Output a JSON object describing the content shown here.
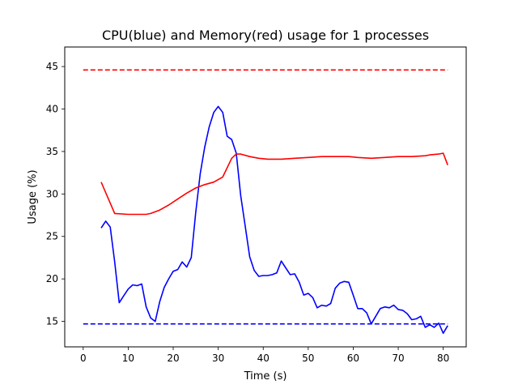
{
  "chart_data": {
    "type": "line",
    "title": "CPU(blue) and Memory(red) usage for 1 processes",
    "xlabel": "Time (s)",
    "ylabel": "Usage (%)",
    "xlim": [
      -4.1,
      85.1
    ],
    "ylim": [
      12.0,
      47.3
    ],
    "x_ticks": [
      0,
      10,
      20,
      30,
      40,
      50,
      60,
      70,
      80
    ],
    "y_ticks": [
      15,
      20,
      25,
      30,
      35,
      40,
      45
    ],
    "grid": false,
    "series": [
      {
        "color": "#0000ff",
        "style": "solid",
        "x": [
          4,
          5,
          6,
          7,
          8,
          9,
          10,
          11,
          12,
          13,
          14,
          15,
          16,
          17,
          18,
          19,
          20,
          21,
          22,
          23,
          24,
          25,
          26,
          27,
          28,
          29,
          30,
          31,
          32,
          33,
          34,
          35,
          36,
          37,
          38,
          39,
          40,
          41,
          42,
          43,
          44,
          45,
          46,
          47,
          48,
          49,
          50,
          51,
          52,
          53,
          54,
          55,
          56,
          57,
          58,
          59,
          60,
          61,
          62,
          63,
          64,
          65,
          66,
          67,
          68,
          69,
          70,
          71,
          72,
          73,
          74,
          75,
          76,
          77,
          78,
          79,
          80,
          81
        ],
        "y": [
          26.0,
          26.8,
          26.1,
          22.0,
          17.2,
          18.0,
          18.8,
          19.3,
          19.2,
          19.4,
          16.7,
          15.4,
          15.0,
          17.3,
          19.0,
          20.0,
          20.9,
          21.1,
          22.0,
          21.4,
          22.5,
          27.8,
          32.4,
          35.5,
          37.9,
          39.6,
          40.3,
          39.6,
          36.8,
          36.4,
          34.8,
          29.8,
          26.2,
          22.6,
          21.0,
          20.3,
          20.4,
          20.4,
          20.5,
          20.7,
          22.1,
          21.3,
          20.5,
          20.6,
          19.6,
          18.1,
          18.3,
          17.8,
          16.6,
          16.9,
          16.8,
          17.1,
          18.9,
          19.5,
          19.7,
          19.6,
          18.1,
          16.5,
          16.5,
          16.0,
          14.7,
          15.6,
          16.5,
          16.7,
          16.6,
          16.9,
          16.4,
          16.3,
          15.9,
          15.2,
          15.3,
          15.6,
          14.3,
          14.6,
          14.3,
          14.8,
          13.6,
          14.5
        ]
      },
      {
        "color": "#ff0000",
        "style": "solid",
        "x": [
          4,
          7,
          10,
          13,
          14,
          15,
          17,
          19,
          21,
          23,
          25,
          27,
          29,
          31,
          33,
          34,
          35,
          37,
          39,
          41,
          44,
          47,
          50,
          53,
          56,
          59,
          61,
          64,
          67,
          70,
          73,
          76,
          77,
          79,
          80,
          81
        ],
        "y": [
          31.4,
          27.7,
          27.6,
          27.6,
          27.6,
          27.7,
          28.1,
          28.7,
          29.4,
          30.1,
          30.7,
          31.1,
          31.4,
          32.0,
          34.2,
          34.7,
          34.7,
          34.4,
          34.2,
          34.1,
          34.1,
          34.2,
          34.3,
          34.4,
          34.4,
          34.4,
          34.3,
          34.2,
          34.3,
          34.4,
          34.4,
          34.5,
          34.6,
          34.7,
          34.8,
          33.4
        ]
      },
      {
        "color": "#0000ff",
        "style": "dashed",
        "x": [
          0,
          81
        ],
        "y": [
          14.7,
          14.7
        ]
      },
      {
        "color": "#ff0000",
        "style": "dashed",
        "x": [
          0,
          81
        ],
        "y": [
          44.6,
          44.6
        ]
      }
    ]
  }
}
